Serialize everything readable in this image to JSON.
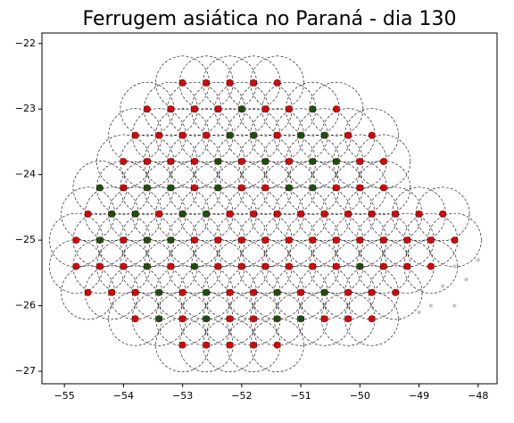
{
  "chart_data": {
    "type": "scatter",
    "title": "Ferrugem asiática no Paraná - dia 130",
    "xlim": [
      -55.38,
      -47.68
    ],
    "ylim": [
      -27.19,
      -21.84
    ],
    "xticks": [
      {
        "value": -55,
        "label": "−55"
      },
      {
        "value": -54,
        "label": "−54"
      },
      {
        "value": -53,
        "label": "−53"
      },
      {
        "value": -52,
        "label": "−52"
      },
      {
        "value": -51,
        "label": "−51"
      },
      {
        "value": -50,
        "label": "−50"
      },
      {
        "value": -49,
        "label": "−49"
      },
      {
        "value": -48,
        "label": "−48"
      }
    ],
    "yticks": [
      {
        "value": -22,
        "label": "−22"
      },
      {
        "value": -23,
        "label": "−23"
      },
      {
        "value": -24,
        "label": "−24"
      },
      {
        "value": -25,
        "label": "−25"
      },
      {
        "value": -26,
        "label": "−26"
      },
      {
        "value": -27,
        "label": "−27"
      }
    ],
    "series": [
      {
        "color": "#e00000",
        "x": [
          -53.0,
          -52.6,
          -52.2,
          -51.8,
          -51.4,
          -53.6,
          -53.2,
          -52.8,
          -52.4,
          -51.6,
          -51.2,
          -50.4,
          -53.8,
          -53.4,
          -53.0,
          -52.6,
          -51.4,
          -50.2,
          -49.8,
          -54.0,
          -53.6,
          -53.2,
          -52.8,
          -52.0,
          -51.2,
          -50.0,
          -49.6,
          -54.0,
          -52.8,
          -52.0,
          -51.6,
          -50.4,
          -50.0,
          -49.6,
          -54.6,
          -53.4,
          -52.2,
          -51.8,
          -51.4,
          -51.0,
          -50.6,
          -50.2,
          -49.8,
          -49.4,
          -49.0,
          -48.6,
          -54.8,
          -54.0,
          -52.8,
          -52.4,
          -52.0,
          -51.6,
          -51.2,
          -50.8,
          -50.4,
          -50.0,
          -49.6,
          -49.2,
          -48.8,
          -48.4,
          -54.8,
          -54.4,
          -54.0,
          -53.2,
          -52.4,
          -52.0,
          -51.6,
          -51.2,
          -50.8,
          -50.4,
          -49.6,
          -49.2,
          -48.8,
          -54.6,
          -54.2,
          -53.8,
          -53.0,
          -52.2,
          -51.8,
          -51.0,
          -50.2,
          -49.8,
          -49.4,
          -53.8,
          -53.0,
          -52.2,
          -51.8,
          -50.6,
          -50.2,
          -49.8,
          -53.0,
          -52.6,
          -52.2,
          -51.8,
          -51.4
        ],
        "values": [
          -22.6,
          -22.6,
          -22.6,
          -22.6,
          -22.6,
          -23.0,
          -23.0,
          -23.0,
          -23.0,
          -23.0,
          -23.0,
          -23.0,
          -23.4,
          -23.4,
          -23.4,
          -23.4,
          -23.4,
          -23.4,
          -23.4,
          -23.8,
          -23.8,
          -23.8,
          -23.8,
          -23.8,
          -23.8,
          -23.8,
          -23.8,
          -24.2,
          -24.2,
          -24.2,
          -24.2,
          -24.2,
          -24.2,
          -24.2,
          -24.6,
          -24.6,
          -24.6,
          -24.6,
          -24.6,
          -24.6,
          -24.6,
          -24.6,
          -24.6,
          -24.6,
          -24.6,
          -24.6,
          -25.0,
          -25.0,
          -25.0,
          -25.0,
          -25.0,
          -25.0,
          -25.0,
          -25.0,
          -25.0,
          -25.0,
          -25.0,
          -25.0,
          -25.0,
          -25.0,
          -25.4,
          -25.4,
          -25.4,
          -25.4,
          -25.4,
          -25.4,
          -25.4,
          -25.4,
          -25.4,
          -25.4,
          -25.4,
          -25.4,
          -25.4,
          -25.8,
          -25.8,
          -25.8,
          -25.8,
          -25.8,
          -25.8,
          -25.8,
          -25.8,
          -25.8,
          -25.8,
          -26.2,
          -26.2,
          -26.2,
          -26.2,
          -26.2,
          -26.2,
          -26.2,
          -26.6,
          -26.6,
          -26.6,
          -26.6,
          -26.6
        ]
      },
      {
        "color": "#0b5a0b",
        "x": [
          -52.0,
          -50.8,
          -52.2,
          -51.8,
          -51.0,
          -50.6,
          -52.4,
          -51.6,
          -50.8,
          -50.4,
          -54.4,
          -53.6,
          -53.2,
          -52.4,
          -51.2,
          -50.8,
          -54.2,
          -53.8,
          -53.0,
          -52.6,
          -54.4,
          -53.6,
          -53.2,
          -53.6,
          -52.8,
          -50.0,
          -53.4,
          -52.6,
          -51.4,
          -50.6,
          -53.4,
          -52.6,
          -51.4,
          -51.0
        ],
        "values": [
          -23.0,
          -23.0,
          -23.4,
          -23.4,
          -23.4,
          -23.4,
          -23.8,
          -23.8,
          -23.8,
          -23.8,
          -24.2,
          -24.2,
          -24.2,
          -24.2,
          -24.2,
          -24.2,
          -24.6,
          -24.6,
          -24.6,
          -24.6,
          -25.0,
          -25.0,
          -25.0,
          -25.4,
          -25.4,
          -25.4,
          -25.8,
          -25.8,
          -25.8,
          -25.8,
          -26.2,
          -26.2,
          -26.2,
          -26.2
        ]
      },
      {
        "color": "#c8c8c8",
        "x": [
          -48.4,
          -48.0,
          -48.6,
          -48.2,
          -48.8,
          -48.4,
          -49.0
        ],
        "values": [
          -25.4,
          -25.3,
          -25.7,
          -25.6,
          -26.0,
          -26.0,
          -26.1
        ]
      }
    ]
  }
}
